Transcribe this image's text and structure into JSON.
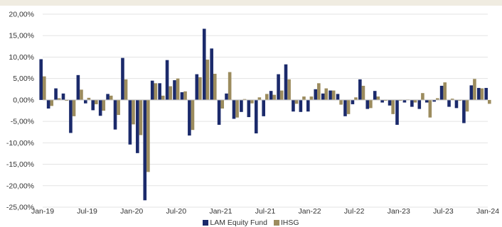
{
  "chart_data": {
    "type": "bar",
    "x_tick_labels": [
      "Jan-19",
      "Jul-19",
      "Jan-20",
      "Jul-20",
      "Jan-21",
      "Jul-21",
      "Jan-22",
      "Jul-22",
      "Jan-23",
      "Jul-23",
      "Jan-24"
    ],
    "y_tick_labels": [
      "20,00%",
      "15,00%",
      "10,00%",
      "5,00%",
      "0,00%",
      "-5,00%",
      "-10,00%",
      "-15,00%",
      "-20,00%",
      "-25,00%"
    ],
    "ylim": [
      -25,
      20
    ],
    "y_unit": "%",
    "grid": true,
    "legend_position": "bottom",
    "x": [
      "2019-01",
      "2019-02",
      "2019-03",
      "2019-04",
      "2019-05",
      "2019-06",
      "2019-07",
      "2019-08",
      "2019-09",
      "2019-10",
      "2019-11",
      "2019-12",
      "2020-01",
      "2020-02",
      "2020-03",
      "2020-04",
      "2020-05",
      "2020-06",
      "2020-07",
      "2020-08",
      "2020-09",
      "2020-10",
      "2020-11",
      "2020-12",
      "2021-01",
      "2021-02",
      "2021-03",
      "2021-04",
      "2021-05",
      "2021-06",
      "2021-07",
      "2021-08",
      "2021-09",
      "2021-10",
      "2021-11",
      "2021-12",
      "2022-01",
      "2022-02",
      "2022-03",
      "2022-04",
      "2022-05",
      "2022-06",
      "2022-07",
      "2022-08",
      "2022-09",
      "2022-10",
      "2022-11",
      "2022-12",
      "2023-01",
      "2023-02",
      "2023-03",
      "2023-04",
      "2023-05",
      "2023-06",
      "2023-07",
      "2023-08",
      "2023-09",
      "2023-10",
      "2023-11",
      "2023-12",
      "2024-01"
    ],
    "series": [
      {
        "name": "LAM Equity Fund",
        "color": "#1b2a6b",
        "values": [
          9.5,
          -2.0,
          2.7,
          1.5,
          -7.7,
          5.8,
          -0.8,
          -2.4,
          -3.7,
          1.4,
          -6.9,
          9.8,
          -10.4,
          -12.4,
          -23.4,
          4.5,
          3.9,
          9.3,
          4.6,
          1.8,
          -8.3,
          6.0,
          16.6,
          12.0,
          -5.8,
          1.5,
          -4.4,
          -2.8,
          -4.0,
          -7.8,
          -3.8,
          2.1,
          6.0,
          8.3,
          -2.7,
          -2.8,
          -2.7,
          2.5,
          1.5,
          2.2,
          1.4,
          -3.8,
          -1.0,
          4.8,
          -2.1,
          2.1,
          -0.6,
          -1.3,
          -5.8,
          -0.6,
          -1.6,
          -2.1,
          -0.6,
          -0.4,
          3.3,
          -1.6,
          -1.9,
          -5.4,
          3.4,
          2.8,
          2.8
        ]
      },
      {
        "name": "IHSG",
        "color": "#9c8c5e",
        "values": [
          5.5,
          -1.4,
          0.4,
          -0.2,
          -3.8,
          2.4,
          0.5,
          -1.0,
          -2.5,
          1.0,
          -3.5,
          4.8,
          -5.7,
          -8.2,
          -16.8,
          3.9,
          1.0,
          3.2,
          5.0,
          2.0,
          -7.0,
          5.3,
          9.4,
          6.1,
          -2.0,
          6.5,
          -4.1,
          0.2,
          -0.8,
          0.6,
          1.4,
          1.2,
          2.2,
          4.8,
          -0.9,
          0.8,
          0.8,
          3.9,
          2.7,
          2.2,
          -1.1,
          -3.3,
          0.6,
          3.3,
          -1.9,
          0.8,
          -0.2,
          -3.3,
          -0.2,
          0.1,
          -0.6,
          1.6,
          -4.1,
          0.4,
          4.1,
          0.3,
          -0.2,
          -2.7,
          4.9,
          2.7,
          -0.9
        ]
      }
    ]
  }
}
